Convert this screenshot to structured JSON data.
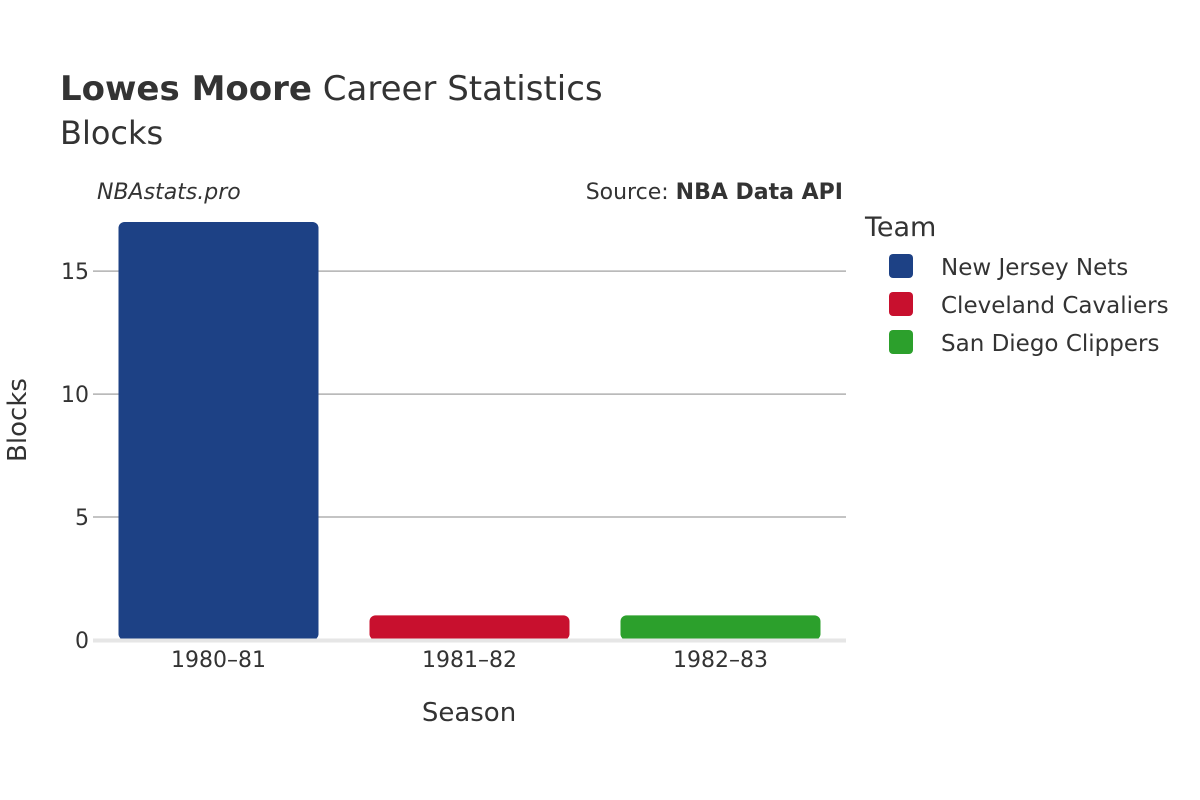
{
  "header": {
    "title_bold": "Lowes Moore",
    "title_rest": " Career Statistics",
    "subtitle": "Blocks"
  },
  "watermark": "NBAstats.pro",
  "source": {
    "prefix": "Source: ",
    "name": "NBA Data API"
  },
  "legend": {
    "title": "Team",
    "items": [
      {
        "label": "New Jersey Nets",
        "color": "#1d4185"
      },
      {
        "label": "Cleveland Cavaliers",
        "color": "#c8102e"
      },
      {
        "label": "San Diego Clippers",
        "color": "#2ca02c"
      }
    ]
  },
  "chart_data": {
    "type": "bar",
    "title": "Lowes Moore Career Statistics",
    "subtitle": "Blocks",
    "xlabel": "Season",
    "ylabel": "Blocks",
    "categories": [
      "1980–81",
      "1981–82",
      "1982–83"
    ],
    "series": [
      {
        "name": "New Jersey Nets",
        "color": "#1d4185",
        "values": [
          17,
          null,
          null
        ]
      },
      {
        "name": "Cleveland Cavaliers",
        "color": "#c8102e",
        "values": [
          null,
          1,
          null
        ]
      },
      {
        "name": "San Diego Clippers",
        "color": "#2ca02c",
        "values": [
          null,
          null,
          1
        ]
      }
    ],
    "ylim": [
      0,
      17
    ],
    "yticks": [
      0,
      5,
      10,
      15
    ],
    "grid": true,
    "legend_position": "right"
  }
}
